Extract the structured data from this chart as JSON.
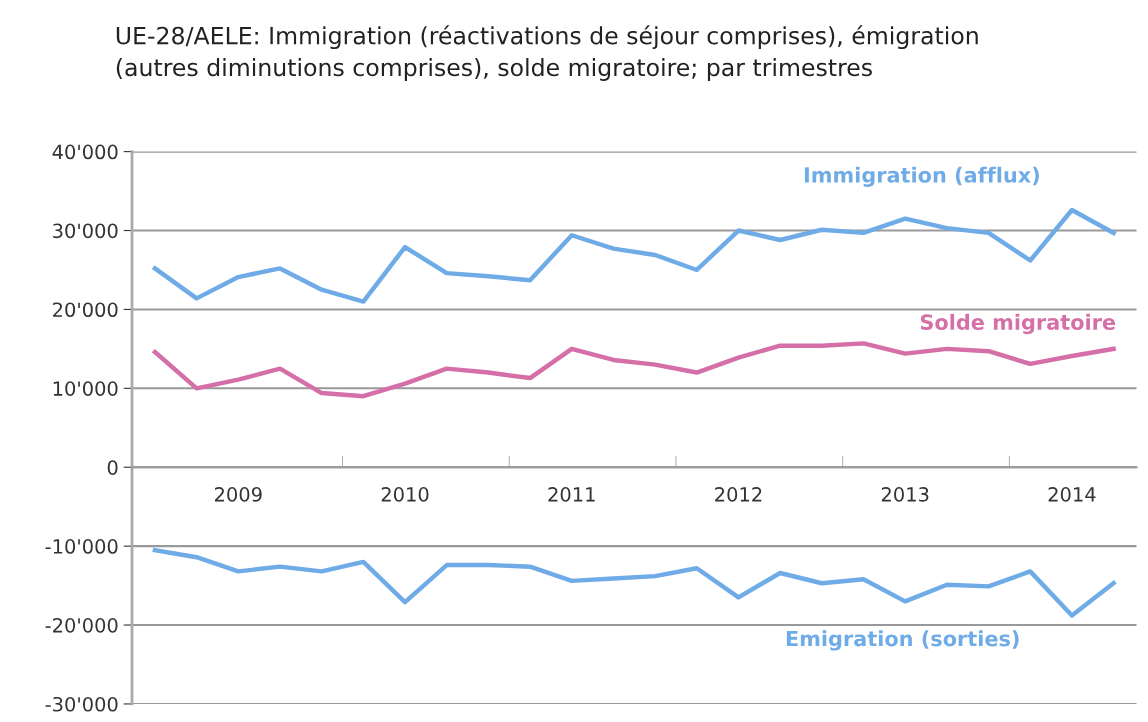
{
  "chart_data": {
    "type": "line",
    "title": "UE-28/AELE: Immigration (réactivations de séjour comprises), émigration\n(autres diminutions comprises), solde migratoire; par trimestres",
    "categories": [
      null,
      null,
      "2009",
      null,
      null,
      null,
      "2010",
      null,
      null,
      null,
      "2011",
      null,
      null,
      null,
      "2012",
      null,
      null,
      null,
      "2013",
      null,
      null,
      null,
      "2014",
      null
    ],
    "series": [
      {
        "name": "Immigration (afflux)",
        "color": "#6fabe6",
        "values": [
          25200,
          21400,
          24100,
          25200,
          22500,
          21000,
          27900,
          24600,
          24200,
          23700,
          29400,
          27700,
          26900,
          25000,
          30000,
          28800,
          30100,
          29700,
          31500,
          30300,
          29700,
          26200,
          32600,
          29700
        ]
      },
      {
        "name": "Solde migratoire",
        "color": "#d46fa8",
        "values": [
          14600,
          10000,
          11100,
          12500,
          9400,
          9000,
          10600,
          12500,
          12000,
          11300,
          15000,
          13600,
          13000,
          12000,
          13900,
          15400,
          15400,
          15700,
          14400,
          15000,
          14700,
          13100,
          14100,
          15000
        ]
      },
      {
        "name": "Emigration (sorties)",
        "color": "#6fabe6",
        "values": [
          -10500,
          -11400,
          -13200,
          -12600,
          -13200,
          -12000,
          -17100,
          -12400,
          -12400,
          -12600,
          -14400,
          -14100,
          -13800,
          -12800,
          -16500,
          -13400,
          -14700,
          -14200,
          -17000,
          -14900,
          -15100,
          -13200,
          -18800,
          -14700
        ]
      }
    ],
    "ylim": [
      -30000,
      40000
    ],
    "yticks": [
      {
        "value": -30000,
        "label": "-30'000"
      },
      {
        "value": -20000,
        "label": "-20'000"
      },
      {
        "value": -10000,
        "label": "-10'000"
      },
      0,
      {
        "value": 10000,
        "label": "10'000"
      },
      {
        "value": 20000,
        "label": "20'000"
      },
      {
        "value": 30000,
        "label": "30'000"
      },
      {
        "value": 40000,
        "label": "40'000"
      }
    ],
    "grid": "y",
    "marker": "none",
    "line_style": "solid"
  }
}
